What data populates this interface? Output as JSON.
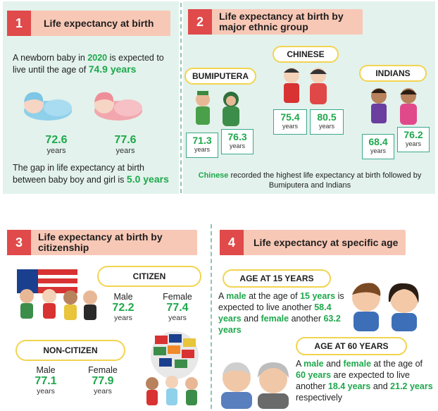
{
  "section1": {
    "number": "1",
    "title": "Life expectancy at birth",
    "intro": [
      "A newborn baby in ",
      "2020",
      " is expected to live until the age of ",
      "74.9 years"
    ],
    "boy": {
      "value": "72.6",
      "unit": "years"
    },
    "girl": {
      "value": "77.6",
      "unit": "years"
    },
    "gap": [
      "The gap in life expectancy at birth between baby boy and girl is ",
      "5.0 years"
    ]
  },
  "section2": {
    "number": "2",
    "title": "Life expectancy at birth by major ethnic group",
    "groups": [
      {
        "name": "BUMIPUTERA",
        "male": "71.3",
        "female": "76.3",
        "unit": "years"
      },
      {
        "name": "CHINESE",
        "male": "75.4",
        "female": "80.5",
        "unit": "years"
      },
      {
        "name": "INDIANS",
        "male": "68.4",
        "female": "76.2",
        "unit": "years"
      }
    ],
    "note": [
      "Chinese",
      " recorded the highest life expectancy at birth followed by Bumiputera and Indians"
    ]
  },
  "section3": {
    "number": "3",
    "title": "Life expectancy at birth by citizenship",
    "citizen": {
      "label": "CITIZEN",
      "male_label": "Male",
      "male": "72.2",
      "female_label": "Female",
      "female": "77.4",
      "unit": "years"
    },
    "noncitizen": {
      "label": "NON-CITIZEN",
      "male_label": "Male",
      "male": "77.1",
      "female_label": "Female",
      "female": "77.9",
      "unit": "years"
    }
  },
  "section4": {
    "number": "4",
    "title": "Life expectancy at specific age",
    "age15": {
      "label": "AGE AT 15 YEARS",
      "text": [
        "A ",
        "male",
        " at the age of ",
        "15 years",
        " is expected to live another ",
        "58.4 years",
        " and ",
        "female",
        " another ",
        "63.2 years"
      ]
    },
    "age60": {
      "label": "AGE AT 60 YEARS",
      "text": [
        "A ",
        "male",
        " and ",
        "female",
        " at the age of ",
        "60 years",
        " are expected to live another ",
        "18.4 years",
        " and ",
        "21.2 years",
        " respectively"
      ]
    }
  },
  "colors": {
    "accent_green": "#1ea84c",
    "header_pink": "#f8c8b6",
    "number_red": "#e04a4a",
    "panel_mint": "#e3f2ec",
    "pill_yellow": "#f2d450"
  }
}
